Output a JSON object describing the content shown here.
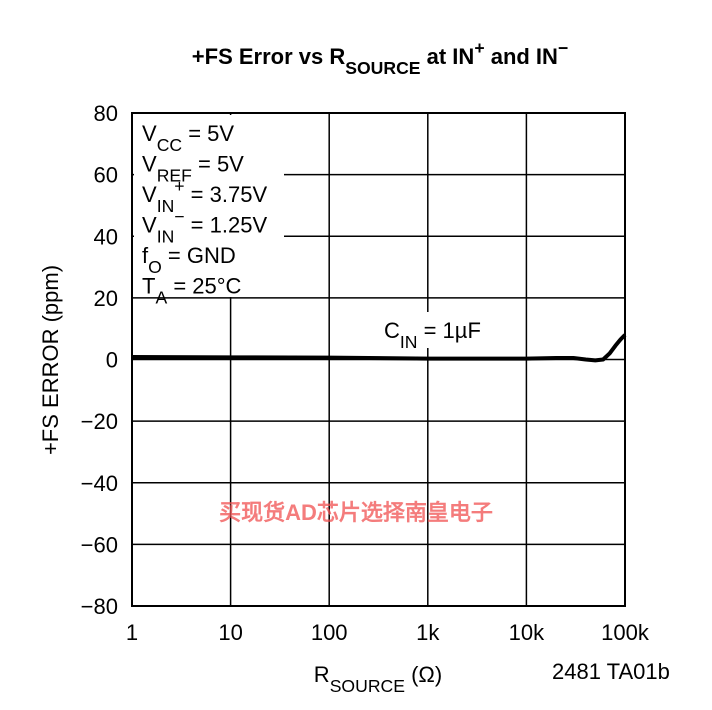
{
  "chart_data": {
    "type": "line",
    "title": [
      {
        "text": "+FS Error vs R",
        "pos": ""
      },
      {
        "text": "SOURCE",
        "pos": "sub"
      },
      {
        "text": " at IN",
        "pos": ""
      },
      {
        "text": "+",
        "pos": "super"
      },
      {
        "text": " and IN",
        "pos": ""
      },
      {
        "text": "−",
        "pos": "super"
      }
    ],
    "x_label": [
      {
        "text": "R",
        "pos": ""
      },
      {
        "text": "SOURCE",
        "pos": "sub"
      },
      {
        "text": " (Ω)",
        "pos": ""
      }
    ],
    "y_label": "+FS ERROR (ppm)",
    "conditions": [
      [
        {
          "text": "V",
          "pos": ""
        },
        {
          "text": "CC",
          "pos": "sub"
        },
        {
          "text": " = 5V",
          "pos": ""
        }
      ],
      [
        {
          "text": "V",
          "pos": ""
        },
        {
          "text": "REF",
          "pos": "sub"
        },
        {
          "text": " = 5V",
          "pos": ""
        }
      ],
      [
        {
          "text": "V",
          "pos": ""
        },
        {
          "text": "IN",
          "pos": "sub"
        },
        {
          "text": "+",
          "pos": "super"
        },
        {
          "text": " = 3.75V",
          "pos": ""
        }
      ],
      [
        {
          "text": "V",
          "pos": ""
        },
        {
          "text": "IN",
          "pos": "sub"
        },
        {
          "text": "−",
          "pos": "super"
        },
        {
          "text": " = 1.25V",
          "pos": ""
        }
      ],
      [
        {
          "text": "f",
          "pos": ""
        },
        {
          "text": "O",
          "pos": "sub"
        },
        {
          "text": " = GND",
          "pos": ""
        }
      ],
      [
        {
          "text": "T",
          "pos": ""
        },
        {
          "text": "A",
          "pos": "sub"
        },
        {
          "text": " = 25°C",
          "pos": ""
        }
      ]
    ],
    "curve_label": [
      {
        "text": "C",
        "pos": ""
      },
      {
        "text": "IN",
        "pos": "sub"
      },
      {
        "text": " = 1µF",
        "pos": ""
      }
    ],
    "footnote": "2481 TA01b",
    "watermark": "买现货AD芯片选择南皇电子",
    "x": [
      1,
      10,
      100,
      1000,
      10000,
      20000,
      30000,
      40000,
      50000,
      60000,
      70000,
      80000,
      90000,
      100000
    ],
    "series": [
      {
        "name": "CIN = 1µF",
        "color": "#000000",
        "values": [
          0.8,
          0.7,
          0.6,
          0.3,
          0.3,
          0.5,
          0.5,
          0,
          -0.3,
          0,
          2,
          4.5,
          6.5,
          8
        ]
      }
    ],
    "x_log": true,
    "xlim": [
      1,
      100000
    ],
    "xticks": [
      1,
      10,
      100,
      {
        "value": 1000,
        "label": "1k"
      },
      {
        "value": 10000,
        "label": "10k"
      },
      {
        "value": 100000,
        "label": "100k"
      }
    ],
    "ylim": [
      -80,
      80
    ],
    "yticks": [
      {
        "value": -80,
        "label": "−80"
      },
      {
        "value": -60,
        "label": "−60"
      },
      {
        "value": -40,
        "label": "−40"
      },
      {
        "value": -20,
        "label": "−20"
      },
      0,
      20,
      40,
      60,
      80
    ],
    "grid": true
  }
}
